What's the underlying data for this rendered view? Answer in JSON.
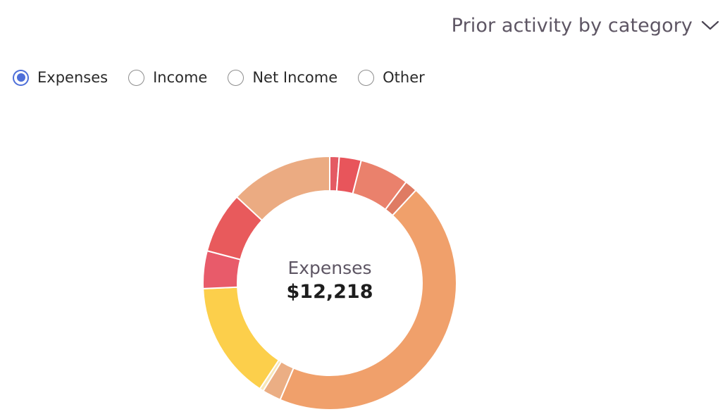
{
  "header": {
    "dropdown_label": "Prior activity by category"
  },
  "filters": {
    "options": [
      {
        "label": "Expenses",
        "selected": true
      },
      {
        "label": "Income",
        "selected": false
      },
      {
        "label": "Net Income",
        "selected": false
      },
      {
        "label": "Other",
        "selected": false
      }
    ]
  },
  "chart_data": {
    "type": "pie",
    "variant": "donut",
    "center_label": "Expenses",
    "center_value": "$12,218",
    "total": 12218,
    "slices": [
      {
        "share": 0.012,
        "color": "#e45a63"
      },
      {
        "share": 0.028,
        "color": "#e8555b"
      },
      {
        "share": 0.063,
        "color": "#ea816c"
      },
      {
        "share": 0.016,
        "color": "#df7b63"
      },
      {
        "share": 0.445,
        "color": "#f0a06b"
      },
      {
        "share": 0.024,
        "color": "#ebae84"
      },
      {
        "share": 0.005,
        "color": "#f7e6b8"
      },
      {
        "share": 0.15,
        "color": "#fccf4b"
      },
      {
        "share": 0.048,
        "color": "#e85b6a"
      },
      {
        "share": 0.078,
        "color": "#e85a5c"
      },
      {
        "share": 0.131,
        "color": "#ebab82"
      }
    ]
  }
}
